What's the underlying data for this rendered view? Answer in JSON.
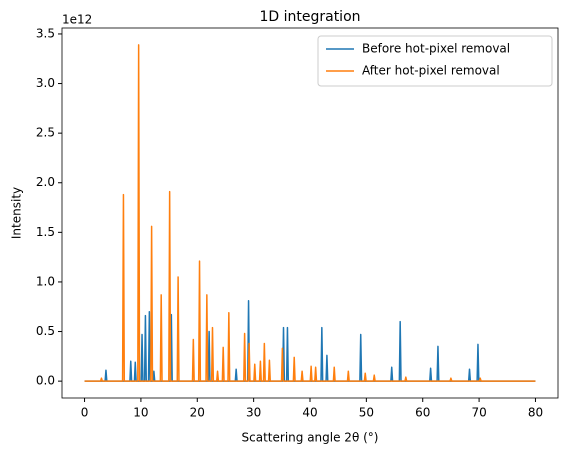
{
  "chart_data": {
    "type": "line",
    "title": "1D integration",
    "x_label": "Scattering angle 2θ (°)",
    "y_label": "Intensity",
    "y_offset_label": "1e12",
    "xlim": [
      -4,
      84
    ],
    "xticks": [
      0,
      10,
      20,
      30,
      40,
      50,
      60,
      70,
      80
    ],
    "ylim": [
      -170000000000.0,
      3560000000000.0
    ],
    "yticks": [
      {
        "value": 0,
        "label": "0.0"
      },
      {
        "value": 500000000000.0,
        "label": "0.5"
      },
      {
        "value": 1000000000000.0,
        "label": "1.0"
      },
      {
        "value": 1500000000000.0,
        "label": "1.5"
      },
      {
        "value": 2000000000000.0,
        "label": "2.0"
      },
      {
        "value": 2500000000000.0,
        "label": "2.5"
      },
      {
        "value": 3000000000000.0,
        "label": "3.0"
      },
      {
        "value": 3500000000000.0,
        "label": "3.5"
      }
    ],
    "legend": "upper right",
    "grid": false,
    "series": [
      {
        "name": "Before hot-pixel removal",
        "color": "#1f77b4",
        "x": [
          0,
          3.65,
          3.8,
          3.95,
          8.05,
          8.2,
          8.35,
          8.85,
          9,
          9.15,
          10.05,
          10.2,
          10.35,
          10.65,
          10.8,
          10.95,
          11.35,
          11.5,
          11.65,
          12.15,
          12.3,
          12.45,
          15.25,
          15.4,
          15.55,
          21.95,
          22.1,
          22.25,
          26.75,
          26.9,
          27.05,
          28.95,
          29.1,
          29.25,
          35.15,
          35.3,
          35.45,
          35.85,
          36,
          36.15,
          41.95,
          42.1,
          42.25,
          42.85,
          43,
          43.15,
          48.85,
          49,
          49.15,
          54.35,
          54.5,
          54.65,
          55.85,
          56,
          56.15,
          61.25,
          61.4,
          61.55,
          62.55,
          62.7,
          62.85,
          68.15,
          68.3,
          68.45,
          69.65,
          69.8,
          69.95,
          80
        ],
        "values": [
          0,
          0,
          110000000000.0,
          0,
          0,
          200000000000.0,
          0,
          0,
          190000000000.0,
          0,
          0,
          470000000000.0,
          0,
          0,
          660000000000.0,
          0,
          0,
          700000000000.0,
          0,
          0,
          100000000000.0,
          0,
          0,
          670000000000.0,
          0,
          0,
          500000000000.0,
          0,
          0,
          120000000000.0,
          0,
          0,
          810000000000.0,
          0,
          0,
          540000000000.0,
          0,
          0,
          540000000000.0,
          0,
          0,
          540000000000.0,
          0,
          0,
          260000000000.0,
          0,
          0,
          470000000000.0,
          0,
          0,
          140000000000.0,
          0,
          0,
          600000000000.0,
          0,
          0,
          130000000000.0,
          0,
          0,
          350000000000.0,
          0,
          0,
          120000000000.0,
          0,
          0,
          370000000000.0,
          0,
          0
        ]
      },
      {
        "name": "After hot-pixel removal",
        "color": "#ff7f0e",
        "x": [
          0,
          2.85,
          3,
          3.15,
          6.75,
          6.9,
          7.05,
          9.45,
          9.6,
          9.75,
          11.75,
          11.9,
          12.05,
          13.45,
          13.6,
          13.75,
          14.95,
          15.1,
          15.25,
          16.45,
          16.6,
          16.75,
          19.15,
          19.3,
          19.45,
          20.25,
          20.4,
          20.55,
          21.55,
          21.7,
          21.85,
          22.55,
          22.7,
          22.85,
          23.45,
          23.6,
          23.75,
          24.45,
          24.6,
          24.75,
          25.45,
          25.6,
          25.75,
          28.25,
          28.4,
          28.55,
          29.05,
          29.2,
          29.35,
          30.05,
          30.2,
          30.35,
          31.05,
          31.2,
          31.35,
          31.75,
          31.9,
          32.05,
          32.65,
          32.8,
          32.95,
          34.95,
          35.1,
          35.25,
          37.05,
          37.2,
          37.35,
          38.45,
          38.6,
          38.75,
          40.05,
          40.2,
          40.35,
          40.85,
          41,
          41.15,
          44.15,
          44.3,
          44.45,
          46.65,
          46.8,
          46.95,
          49.65,
          49.8,
          49.95,
          51.25,
          51.4,
          51.55,
          56.85,
          57,
          57.15,
          64.85,
          65,
          65.15,
          70.05,
          70.2,
          70.35,
          80
        ],
        "values": [
          0,
          0,
          30000000000.0,
          0,
          0,
          1880000000000.0,
          0,
          0,
          3390000000000.0,
          0,
          0,
          1560000000000.0,
          0,
          0,
          870000000000.0,
          0,
          0,
          1910000000000.0,
          0,
          0,
          1050000000000.0,
          0,
          0,
          420000000000.0,
          0,
          0,
          1210000000000.0,
          0,
          0,
          870000000000.0,
          0,
          0,
          540000000000.0,
          0,
          0,
          100000000000.0,
          0,
          0,
          340000000000.0,
          0,
          0,
          690000000000.0,
          0,
          0,
          480000000000.0,
          0,
          0,
          380000000000.0,
          0,
          0,
          170000000000.0,
          0,
          0,
          200000000000.0,
          0,
          0,
          380000000000.0,
          0,
          0,
          210000000000.0,
          0,
          0,
          330000000000.0,
          0,
          0,
          240000000000.0,
          0,
          0,
          100000000000.0,
          0,
          0,
          150000000000.0,
          0,
          0,
          140000000000.0,
          0,
          0,
          140000000000.0,
          0,
          0,
          100000000000.0,
          0,
          0,
          80000000000.0,
          0,
          0,
          60000000000.0,
          0,
          0,
          40000000000.0,
          0,
          0,
          30000000000.0,
          0,
          0,
          30000000000.0,
          0,
          0
        ]
      }
    ]
  }
}
